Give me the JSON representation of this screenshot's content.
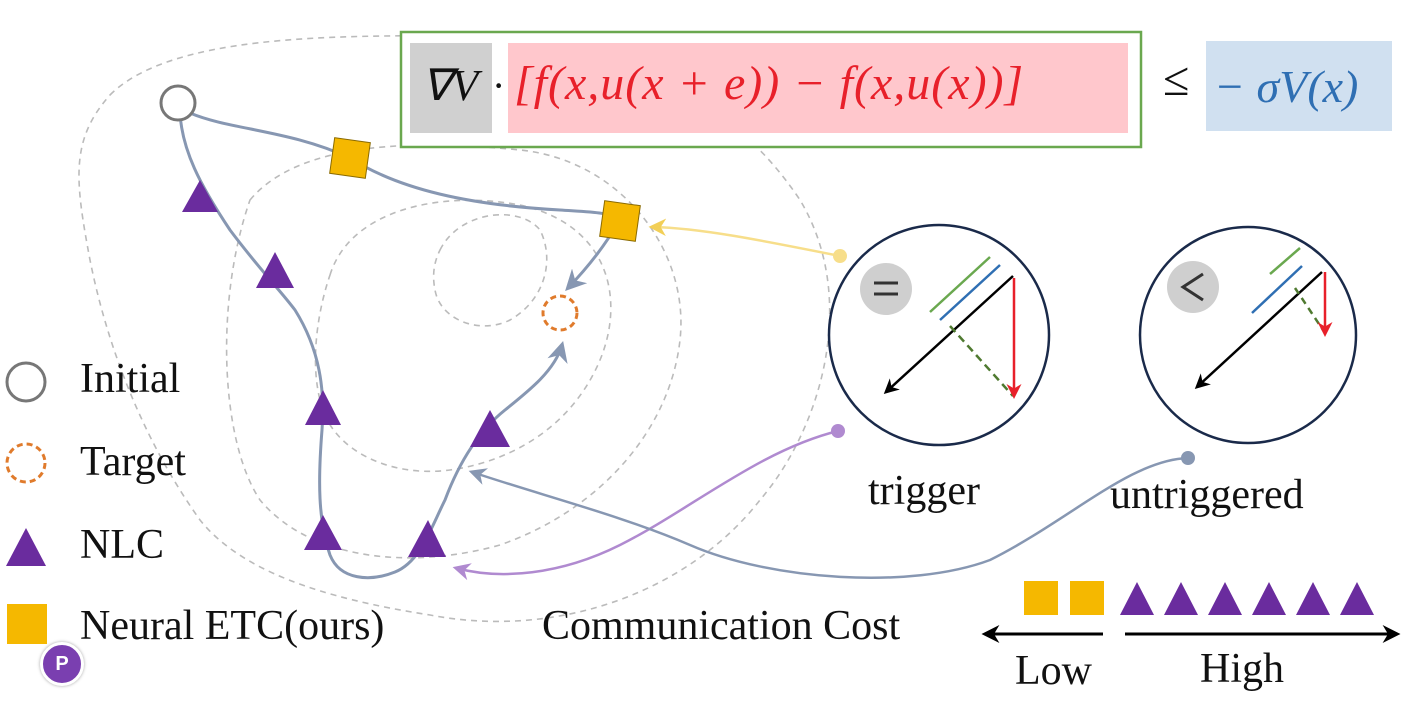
{
  "formula": {
    "grad_v": "∇V",
    "dot": "·",
    "bracket_expr": "[f(x,u(x + e)) − f(x,u(x))]",
    "relation": "≤",
    "rhs": "− σV(x)"
  },
  "legend": [
    {
      "label": "Initial",
      "marker": "hollow-circle"
    },
    {
      "label": "Target",
      "marker": "dashed-orange-circle"
    },
    {
      "label": "NLC",
      "marker": "purple-triangle"
    },
    {
      "label": "Neural ETC(ours)",
      "marker": "gold-square"
    }
  ],
  "insets": {
    "trigger": {
      "label": "trigger",
      "symbol": "="
    },
    "untriggered": {
      "label": "untriggered",
      "symbol": "<"
    }
  },
  "cost_scale": {
    "title": "Communication Cost",
    "low": "Low",
    "high": "High",
    "etc_markers": 2,
    "nlc_markers": 6
  },
  "colors": {
    "nlc": "#6a2c9e",
    "etc": "#f5b800",
    "target": "#e07b2c",
    "path": "#8797b2",
    "formula_box": "#6aa84f",
    "grad_bg": "#d0d0d0",
    "bracket_bg": "#ffc7cc",
    "bracket_text": "#e8202a",
    "rhs_bg": "#d0e0f0",
    "rhs_text": "#2f6fb3",
    "contour": "#bbbbbb",
    "trigger_link": "#f7de8a",
    "purple_link": "#b08ad0"
  },
  "icons": [
    "arrow-icon",
    "badge-icon"
  ]
}
